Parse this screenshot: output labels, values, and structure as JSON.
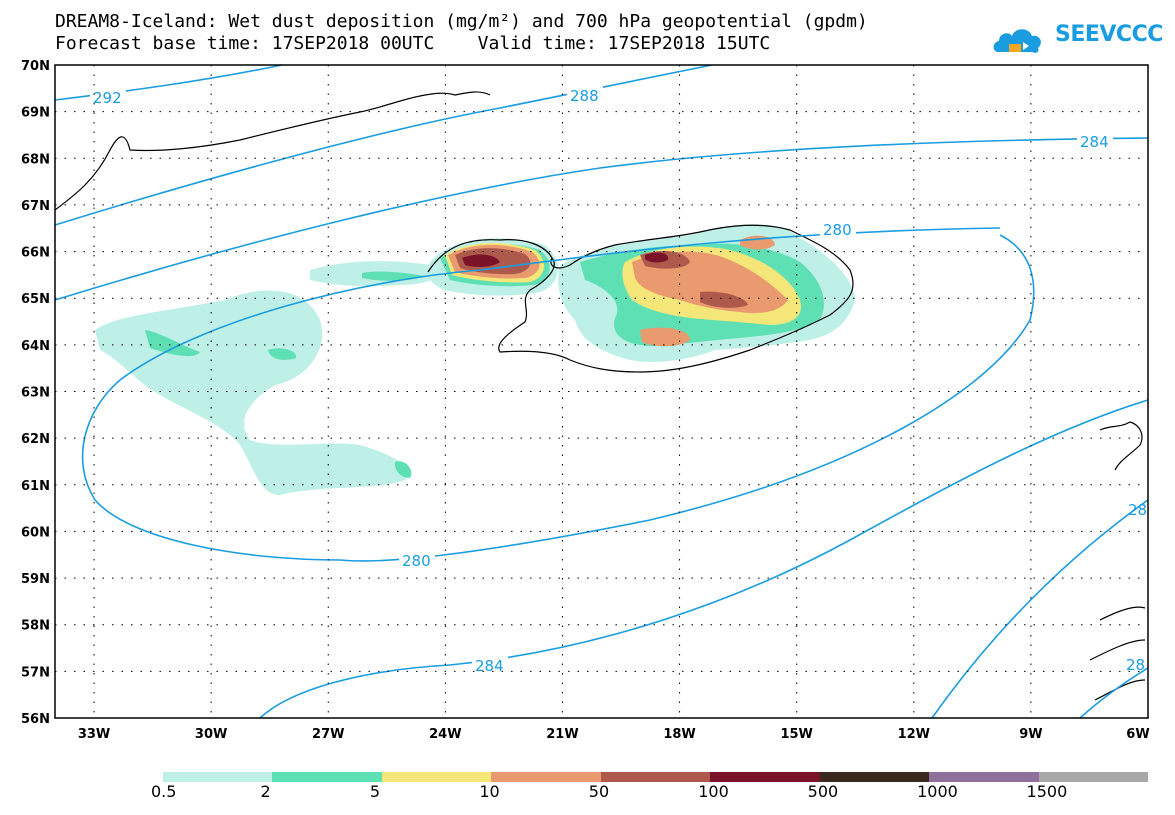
{
  "title_line1": "DREAM8-Iceland: Wet dust deposition (mg/m²) and 700 hPa geopotential (gpdm)",
  "title_line2": "Forecast base time: 17SEP2018 00UTC    Valid time: 17SEP2018 15UTC",
  "logo_text": "SEEVCCC",
  "map": {
    "lat_range": [
      56,
      70
    ],
    "lon_range": [
      -34,
      -6
    ],
    "lat_ticks": [
      "70N",
      "69N",
      "68N",
      "67N",
      "66N",
      "65N",
      "64N",
      "63N",
      "62N",
      "61N",
      "60N",
      "59N",
      "58N",
      "57N",
      "56N"
    ],
    "lon_ticks": [
      "33W",
      "30W",
      "27W",
      "24W",
      "21W",
      "18W",
      "15W",
      "12W",
      "9W",
      "6W"
    ],
    "contour_color": "#1a9de0",
    "contour_labels": [
      "292",
      "288",
      "284",
      "280",
      "280",
      "284",
      "28",
      "28"
    ]
  },
  "legend": {
    "labels": [
      "0.5",
      "2",
      "5",
      "10",
      "50",
      "100",
      "500",
      "1000",
      "1500"
    ],
    "colors": [
      "#bff0e8",
      "#5fe0b4",
      "#f5e67a",
      "#e99a6e",
      "#ad5a4c",
      "#7a1228",
      "#3a2a1e",
      "#8f6f9c",
      "#a8a8a8"
    ]
  }
}
